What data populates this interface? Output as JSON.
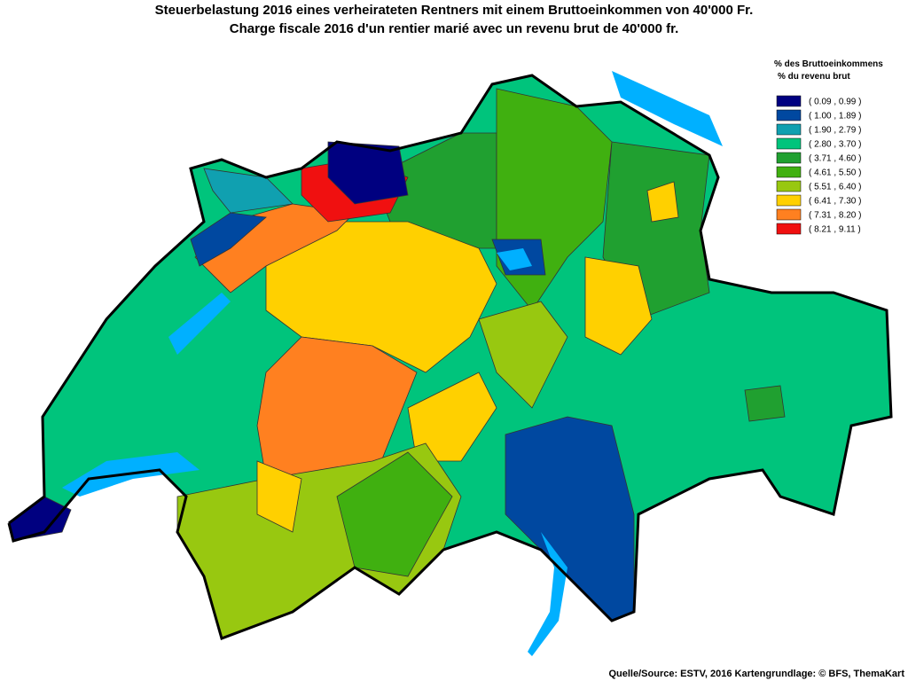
{
  "title": {
    "line1": "Steuerbelastung 2016 eines verheirateten Rentners mit einem Bruttoeinkommen von 40'000 Fr.",
    "line2": "Charge fiscale 2016 d'un rentier marié avec un revenu brut de 40'000 fr."
  },
  "legend": {
    "heading_de": "% des Bruttoeinkommens",
    "heading_fr": "% du revenu brut",
    "items": [
      {
        "label": "( 0.09 , 0.99 )",
        "color": "#000080"
      },
      {
        "label": "( 1.00 , 1.89 )",
        "color": "#0048a0"
      },
      {
        "label": "( 1.90 , 2.79 )",
        "color": "#10a0b0"
      },
      {
        "label": "( 2.80 , 3.70 )",
        "color": "#00c47c"
      },
      {
        "label": "( 3.71 , 4.60 )",
        "color": "#20a030"
      },
      {
        "label": "( 4.61 , 5.50 )",
        "color": "#40b010"
      },
      {
        "label": "( 5.51 , 6.40 )",
        "color": "#98c810"
      },
      {
        "label": "( 6.41 , 7.30 )",
        "color": "#ffd000"
      },
      {
        "label": "( 7.31 , 8.20 )",
        "color": "#ff8020"
      },
      {
        "label": "( 8.21 , 9.11 )",
        "color": "#f01010"
      }
    ]
  },
  "source": "Quelle/Source: ESTV, 2016 Kartengrundlage: © BFS, ThemaKart"
}
